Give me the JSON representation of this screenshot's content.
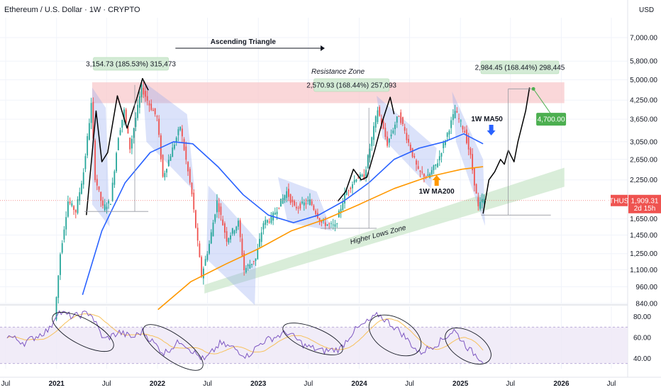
{
  "header": {
    "title": "Ethereum / U.S. Dollar · 1W · CRYPTO",
    "currency": "USD"
  },
  "colors": {
    "up_candle": "#26a69a",
    "down_candle": "#ef5350",
    "ma50": "#2962ff",
    "ma200": "#ff9800",
    "rsi": "#7e57c2",
    "resistance_zone": "#f8c9cc",
    "higher_lows_zone": "#cfe9d0",
    "channel": "#8fa6ee",
    "projection": "#000000",
    "target": "#4caf50",
    "price_tag": "#ef5350"
  },
  "chart_data": {
    "type": "candlestick",
    "title": "Ethereum / U.S. Dollar · 1W · CRYPTO",
    "y_scale": "log",
    "ylim": [
      840,
      8200
    ],
    "y_ticks": [
      7000,
      5800,
      5000,
      4250,
      3650,
      3050,
      2650,
      2250,
      1650,
      1450,
      1250,
      1100,
      960,
      840
    ],
    "y_tick_labels": [
      "7,000.00",
      "5,800.00",
      "5,000.00",
      "4,250.00",
      "3,650.00",
      "3,050.00",
      "2,650.00",
      "2,250.00",
      "1,650.00",
      "1,450.00",
      "1,250.00",
      "1,100.00",
      "960.00",
      "840.00"
    ],
    "x_ticks": [
      "Jul",
      "2021",
      "Jul",
      "2022",
      "Jul",
      "2023",
      "Jul",
      "2024",
      "Jul",
      "2025",
      "Jul",
      "2026",
      "Jul"
    ],
    "x_tick_dates": [
      "2020-07-01",
      "2021-01-01",
      "2021-07-01",
      "2022-01-01",
      "2022-07-01",
      "2023-01-01",
      "2023-07-01",
      "2024-01-01",
      "2024-07-01",
      "2025-01-01",
      "2025-07-01",
      "2026-01-01",
      "2026-07-01"
    ],
    "grid": true,
    "price_path": [
      [
        "2020-12-28",
        740
      ],
      [
        "2021-01-18",
        1250
      ],
      [
        "2021-02-15",
        1900
      ],
      [
        "2021-03-15",
        1750
      ],
      [
        "2021-04-12",
        2400
      ],
      [
        "2021-05-10",
        4100
      ],
      [
        "2021-05-24",
        2300
      ],
      [
        "2021-06-21",
        1800
      ],
      [
        "2021-07-19",
        1900
      ],
      [
        "2021-08-16",
        3200
      ],
      [
        "2021-09-06",
        3900
      ],
      [
        "2021-09-27",
        2900
      ],
      [
        "2021-11-08",
        4700
      ],
      [
        "2021-12-06",
        4100
      ],
      [
        "2022-01-03",
        3700
      ],
      [
        "2022-01-24",
        2300
      ],
      [
        "2022-03-28",
        3450
      ],
      [
        "2022-05-09",
        2000
      ],
      [
        "2022-06-13",
        1050
      ],
      [
        "2022-07-11",
        1350
      ],
      [
        "2022-08-08",
        1900
      ],
      [
        "2022-09-12",
        1400
      ],
      [
        "2022-10-24",
        1600
      ],
      [
        "2022-11-14",
        1100
      ],
      [
        "2022-12-26",
        1200
      ],
      [
        "2023-01-23",
        1600
      ],
      [
        "2023-02-20",
        1650
      ],
      [
        "2023-04-17",
        2050
      ],
      [
        "2023-05-15",
        1800
      ],
      [
        "2023-07-10",
        1900
      ],
      [
        "2023-08-21",
        1600
      ],
      [
        "2023-10-09",
        1550
      ],
      [
        "2023-11-13",
        2000
      ],
      [
        "2023-12-25",
        2300
      ],
      [
        "2024-01-22",
        2300
      ],
      [
        "2024-03-11",
        3950
      ],
      [
        "2024-04-15",
        3000
      ],
      [
        "2024-05-27",
        3800
      ],
      [
        "2024-08-05",
        2400
      ],
      [
        "2024-09-09",
        2300
      ],
      [
        "2024-10-14",
        2600
      ],
      [
        "2024-12-16",
        3900
      ],
      [
        "2025-01-20",
        3300
      ],
      [
        "2025-02-10",
        2700
      ],
      [
        "2025-03-10",
        1800
      ],
      [
        "2025-03-24",
        1909.31
      ]
    ],
    "series": [
      {
        "name": "1W MA50",
        "values": [
          [
            "2021-04-05",
            900
          ],
          [
            "2021-06-14",
            1500
          ],
          [
            "2021-09-06",
            2200
          ],
          [
            "2021-12-06",
            2800
          ],
          [
            "2022-02-28",
            3050
          ],
          [
            "2022-05-09",
            3000
          ],
          [
            "2022-08-08",
            2500
          ],
          [
            "2022-11-07",
            2000
          ],
          [
            "2023-02-06",
            1700
          ],
          [
            "2023-05-08",
            1600
          ],
          [
            "2023-08-07",
            1700
          ],
          [
            "2023-11-06",
            1900
          ],
          [
            "2024-02-05",
            2200
          ],
          [
            "2024-05-06",
            2650
          ],
          [
            "2024-08-05",
            2900
          ],
          [
            "2024-11-04",
            3050
          ],
          [
            "2025-01-13",
            3250
          ],
          [
            "2025-03-24",
            3000
          ]
        ]
      },
      {
        "name": "1W MA200",
        "values": [
          [
            "2022-01-03",
            800
          ],
          [
            "2022-05-02",
            1000
          ],
          [
            "2022-09-05",
            1150
          ],
          [
            "2023-01-02",
            1300
          ],
          [
            "2023-05-01",
            1500
          ],
          [
            "2023-09-04",
            1650
          ],
          [
            "2024-01-01",
            1850
          ],
          [
            "2024-05-06",
            2100
          ],
          [
            "2024-09-02",
            2300
          ],
          [
            "2025-01-06",
            2450
          ],
          [
            "2025-03-24",
            2500
          ]
        ]
      }
    ],
    "rsi": {
      "ylim": [
        30,
        90
      ],
      "y_ticks": [
        80,
        60,
        40
      ],
      "y_tick_labels": [
        "80.00",
        "60.00",
        "40.00"
      ],
      "band": [
        35,
        70
      ],
      "values": [
        [
          "2020-07-06",
          62
        ],
        [
          "2020-09-07",
          55
        ],
        [
          "2020-11-02",
          63
        ],
        [
          "2020-12-07",
          68
        ],
        [
          "2021-01-04",
          85
        ],
        [
          "2021-03-01",
          80
        ],
        [
          "2021-05-03",
          84
        ],
        [
          "2021-06-21",
          58
        ],
        [
          "2021-08-16",
          65
        ],
        [
          "2021-10-04",
          60
        ],
        [
          "2021-11-08",
          66
        ],
        [
          "2022-01-24",
          45
        ],
        [
          "2022-03-28",
          57
        ],
        [
          "2022-05-16",
          45
        ],
        [
          "2022-06-20",
          38
        ],
        [
          "2022-08-15",
          54
        ],
        [
          "2022-10-03",
          50
        ],
        [
          "2022-11-21",
          42
        ],
        [
          "2023-01-16",
          56
        ],
        [
          "2023-04-17",
          65
        ],
        [
          "2023-06-19",
          52
        ],
        [
          "2023-08-21",
          47
        ],
        [
          "2023-10-23",
          49
        ],
        [
          "2023-12-11",
          66
        ],
        [
          "2024-03-11",
          82
        ],
        [
          "2024-05-27",
          66
        ],
        [
          "2024-08-05",
          45
        ],
        [
          "2024-10-14",
          55
        ],
        [
          "2024-12-09",
          67
        ],
        [
          "2025-02-03",
          48
        ],
        [
          "2025-03-24",
          38
        ]
      ]
    },
    "annotations": {
      "ascending_triangle": "Ascending Triangle",
      "resistance_zone": "Resistance Zone",
      "higher_lows_zone": "Higher Lows Zone",
      "ma50_label": "1W MA50",
      "ma200_label": "1W MA200",
      "measure_1": "3,154.73 (185.53%) 315,473",
      "measure_2": "2,570.93 (168.44%) 257,093",
      "measure_3": "2,984.45 (168.44%) 298,445",
      "target": "4,700.00"
    },
    "resistance_zone": [
      4150,
      4900
    ],
    "price_tag": {
      "symbol": "ETHUSD",
      "value": "1,909.31",
      "countdown": "2d 15h"
    }
  }
}
